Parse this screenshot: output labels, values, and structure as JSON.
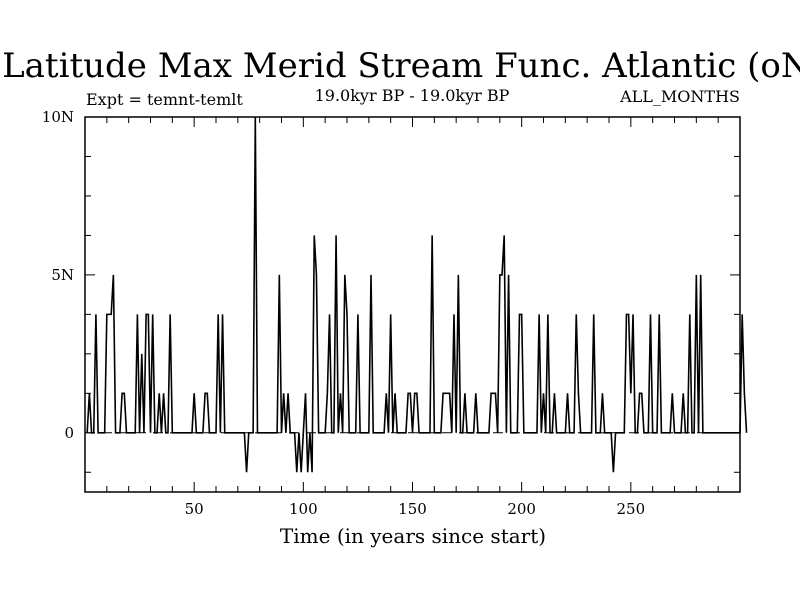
{
  "chart_data": {
    "type": "line",
    "title": "Latitude Max Merid Stream Func. Atlantic (oN)",
    "expt_label": "Expt = temnt-temlt",
    "period_label": "19.0kyr BP - 19.0kyr BP",
    "season_label": "ALL_MONTHS",
    "xlabel": "Time (in years since start)",
    "ylabel": "",
    "xlim": [
      0,
      300
    ],
    "ylim": [
      -1.875,
      10
    ],
    "x_ticks": [
      50,
      100,
      150,
      200,
      250
    ],
    "x_tick_labels": [
      "50",
      "100",
      "150",
      "200",
      "250"
    ],
    "y_ticks": [
      0,
      5,
      10
    ],
    "y_tick_labels": [
      "0",
      "5N",
      "10N"
    ],
    "series": [
      {
        "values": [
          0,
          1.25,
          0,
          0,
          3.75,
          0,
          0,
          0,
          0,
          3.75,
          3.75,
          3.75,
          5,
          0,
          0,
          0,
          1.25,
          1.25,
          0,
          0,
          0,
          0,
          0,
          3.75,
          0,
          2.5,
          0,
          3.75,
          3.75,
          0,
          3.75,
          0,
          0,
          1.25,
          0,
          1.25,
          0,
          0,
          3.75,
          0,
          0,
          0,
          0,
          0,
          0,
          0,
          0,
          0,
          0,
          1.25,
          0,
          0,
          0,
          0,
          1.25,
          1.25,
          0,
          0,
          0,
          0,
          3.75,
          0,
          3.75,
          0,
          0,
          0,
          0,
          0,
          0,
          0,
          0,
          0,
          0,
          -1.25,
          0,
          0,
          0,
          10,
          0,
          0,
          0,
          0,
          0,
          0,
          0,
          0,
          0,
          0,
          5,
          0,
          1.25,
          0,
          1.25,
          0,
          0,
          0,
          -1.25,
          0,
          -1.25,
          0,
          1.25,
          -1.25,
          0,
          -1.25,
          6.25,
          5,
          0,
          0,
          0,
          0,
          1.25,
          3.75,
          0,
          0,
          6.25,
          0,
          1.25,
          0,
          5,
          3.75,
          0,
          0,
          0,
          0,
          3.75,
          0,
          0,
          0,
          0,
          0,
          5,
          0,
          0,
          0,
          0,
          0,
          0,
          1.25,
          0,
          3.75,
          0,
          1.25,
          0,
          0,
          0,
          0,
          0,
          1.25,
          1.25,
          0,
          1.25,
          1.25,
          0,
          0,
          0,
          0,
          0,
          0,
          6.25,
          0,
          0,
          0,
          0,
          1.25,
          1.25,
          1.25,
          1.25,
          0,
          3.75,
          0,
          5,
          0,
          0,
          1.25,
          0,
          0,
          0,
          0,
          1.25,
          0,
          0,
          0,
          0,
          0,
          0,
          1.25,
          1.25,
          1.25,
          0,
          5,
          5,
          6.25,
          0,
          5,
          0,
          0,
          0,
          0,
          3.75,
          3.75,
          0,
          0,
          0,
          0,
          0,
          0,
          0,
          3.75,
          0,
          1.25,
          0,
          3.75,
          0,
          0,
          1.25,
          0,
          0,
          0,
          0,
          0,
          1.25,
          0,
          0,
          0,
          3.75,
          1.25,
          0,
          0,
          0,
          0,
          0,
          0,
          3.75,
          0,
          0,
          0,
          1.25,
          0,
          0,
          0,
          0,
          -1.25,
          0,
          0,
          0,
          0,
          0,
          3.75,
          3.75,
          1.25,
          3.75,
          0,
          0,
          1.25,
          1.25,
          0,
          0,
          0,
          3.75,
          0,
          0,
          0,
          3.75,
          0,
          0,
          0,
          0,
          0,
          1.25,
          0,
          0,
          0,
          0,
          1.25,
          0,
          0,
          3.75,
          0,
          0,
          5,
          0,
          5,
          0,
          0,
          0,
          0,
          0,
          0,
          0,
          0,
          0,
          0,
          0,
          0,
          0,
          0,
          0,
          0,
          0,
          0,
          3.75,
          1.25,
          0
        ]
      }
    ]
  }
}
